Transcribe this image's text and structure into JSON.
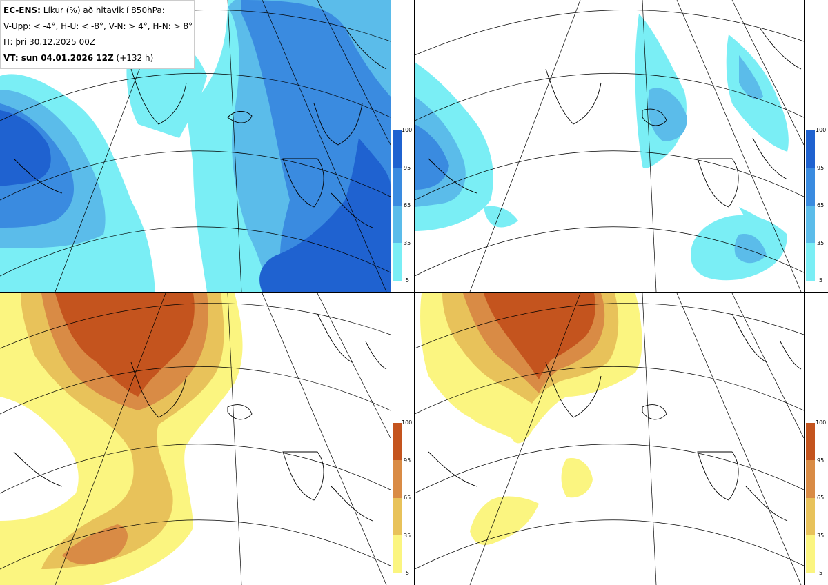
{
  "header": {
    "model": "EC-ENS:",
    "title": "Líkur (%) að hitavik í 850hPa:",
    "thresholds": "V-Upp: < -4°, H-U: < -8°, V-N: > 4°, H-N: > 8°",
    "initial_time": "IT: þri 30.12.2025 00Z",
    "valid_label": "VT: sun 04.01.2026 12Z",
    "lead_time": "(+132 h)"
  },
  "colorbar_cold": {
    "labels": [
      "100",
      "95",
      "65",
      "35",
      "5"
    ],
    "colors": [
      "#1f62d0",
      "#3a8be0",
      "#5bbcea",
      "#7aeef5"
    ]
  },
  "colorbar_warm": {
    "labels": [
      "100",
      "95",
      "65",
      "35",
      "5"
    ],
    "colors": [
      "#c4541e",
      "#d98b45",
      "#e8c25a",
      "#fbf580"
    ]
  },
  "panels": [
    {
      "id": "v-upp",
      "palette": "cold"
    },
    {
      "id": "h-u",
      "palette": "cold"
    },
    {
      "id": "v-n",
      "palette": "warm"
    },
    {
      "id": "h-n",
      "palette": "warm"
    }
  ]
}
